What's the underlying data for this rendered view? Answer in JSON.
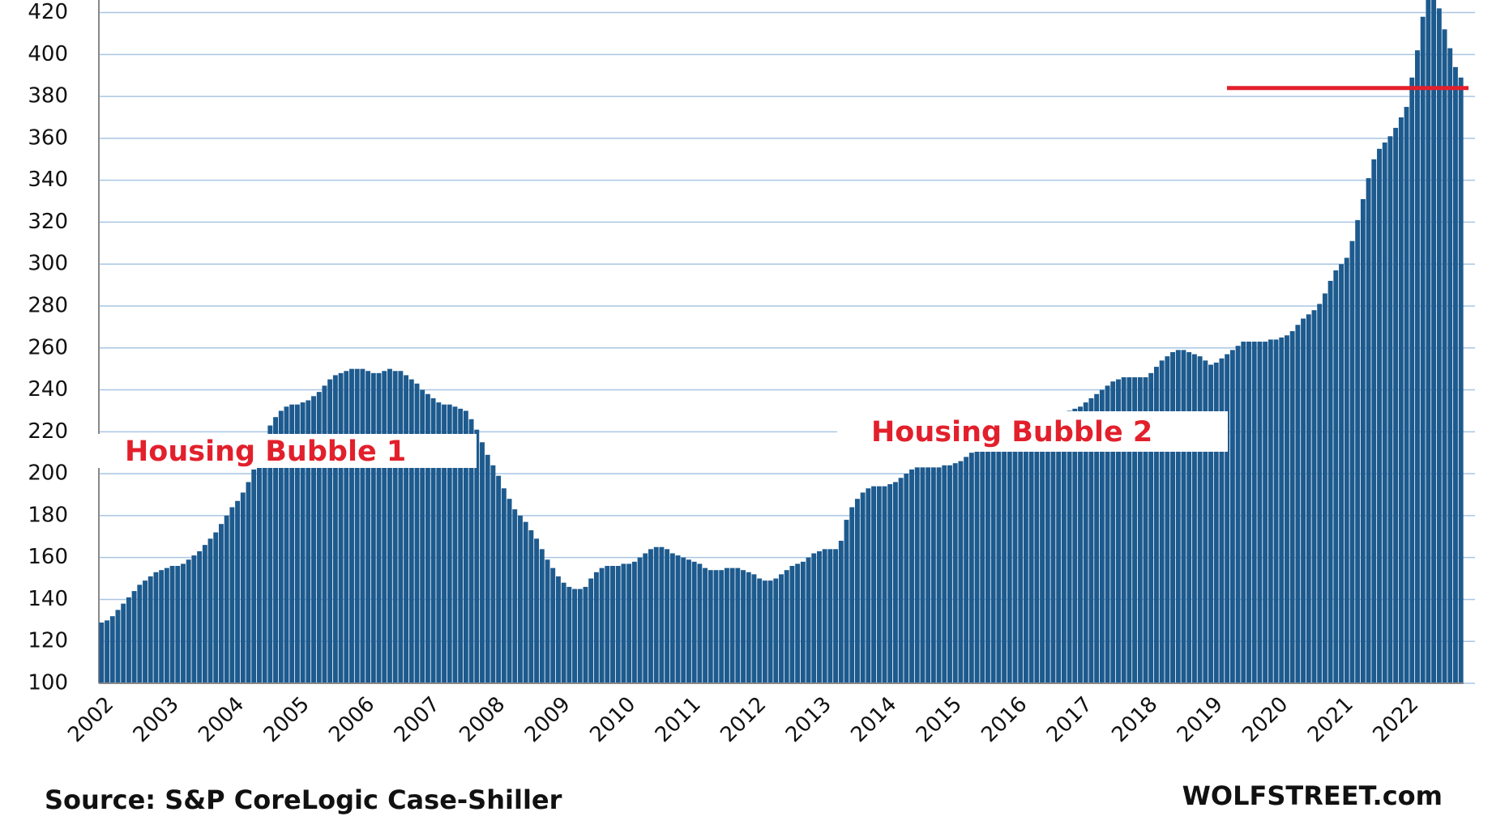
{
  "chart_data": {
    "type": "bar",
    "color": "#1d5a8e",
    "grid": true,
    "grid_color": "#a9c6e3",
    "ylim": [
      100,
      426
    ],
    "yticks": [
      100,
      120,
      140,
      160,
      180,
      200,
      220,
      240,
      260,
      280,
      300,
      320,
      340,
      360,
      380,
      400,
      420
    ],
    "reference_line": {
      "value": 384,
      "color": "#e2202c"
    },
    "annotations": [
      "Housing Bubble 1",
      "Housing Bubble 2"
    ],
    "annotation_color": "#e2202c",
    "source": "Source: S&P CoreLogic Case-Shiller",
    "credit": "WOLFSTREET.com",
    "categories": [
      "2002",
      null,
      null,
      null,
      null,
      null,
      null,
      null,
      null,
      null,
      null,
      null,
      "2003",
      null,
      null,
      null,
      null,
      null,
      null,
      null,
      null,
      null,
      null,
      null,
      "2004",
      null,
      null,
      null,
      null,
      null,
      null,
      null,
      null,
      null,
      null,
      null,
      "2005",
      null,
      null,
      null,
      null,
      null,
      null,
      null,
      null,
      null,
      null,
      null,
      "2006",
      null,
      null,
      null,
      null,
      null,
      null,
      null,
      null,
      null,
      null,
      null,
      "2007",
      null,
      null,
      null,
      null,
      null,
      null,
      null,
      null,
      null,
      null,
      null,
      "2008",
      null,
      null,
      null,
      null,
      null,
      null,
      null,
      null,
      null,
      null,
      null,
      "2009",
      null,
      null,
      null,
      null,
      null,
      null,
      null,
      null,
      null,
      null,
      null,
      "2010",
      null,
      null,
      null,
      null,
      null,
      null,
      null,
      null,
      null,
      null,
      null,
      "2011",
      null,
      null,
      null,
      null,
      null,
      null,
      null,
      null,
      null,
      null,
      null,
      "2012",
      null,
      null,
      null,
      null,
      null,
      null,
      null,
      null,
      null,
      null,
      null,
      "2013",
      null,
      null,
      null,
      null,
      null,
      null,
      null,
      null,
      null,
      null,
      null,
      "2014",
      null,
      null,
      null,
      null,
      null,
      null,
      null,
      null,
      null,
      null,
      null,
      "2015",
      null,
      null,
      null,
      null,
      null,
      null,
      null,
      null,
      null,
      null,
      null,
      "2016",
      null,
      null,
      null,
      null,
      null,
      null,
      null,
      null,
      null,
      null,
      null,
      "2017",
      null,
      null,
      null,
      null,
      null,
      null,
      null,
      null,
      null,
      null,
      null,
      "2018",
      null,
      null,
      null,
      null,
      null,
      null,
      null,
      null,
      null,
      null,
      null,
      "2019",
      null,
      null,
      null,
      null,
      null,
      null,
      null,
      null,
      null,
      null,
      null,
      "2020",
      null,
      null,
      null,
      null,
      null,
      null,
      null,
      null,
      null,
      null,
      null,
      "2021",
      null,
      null,
      null,
      null,
      null,
      null,
      null,
      null,
      null,
      null,
      null,
      "2022",
      null,
      null,
      null,
      null,
      null,
      null,
      null,
      null,
      null,
      null
    ],
    "values": [
      129,
      130,
      132,
      135,
      138,
      141,
      144,
      147,
      149,
      151,
      153,
      154,
      155,
      156,
      156,
      157,
      159,
      161,
      163,
      166,
      169,
      172,
      176,
      180,
      184,
      187,
      191,
      196,
      202,
      210,
      217,
      223,
      227,
      230,
      232,
      233,
      233,
      234,
      235,
      237,
      239,
      242,
      245,
      247,
      248,
      249,
      250,
      250,
      250,
      249,
      248,
      248,
      249,
      250,
      249,
      249,
      247,
      245,
      243,
      240,
      238,
      236,
      234,
      233,
      233,
      232,
      231,
      230,
      226,
      221,
      215,
      209,
      204,
      199,
      193,
      188,
      183,
      180,
      177,
      173,
      169,
      164,
      159,
      155,
      151,
      148,
      146,
      145,
      145,
      146,
      150,
      153,
      155,
      156,
      156,
      156,
      157,
      157,
      158,
      160,
      162,
      164,
      165,
      165,
      164,
      162,
      161,
      160,
      159,
      158,
      157,
      155,
      154,
      154,
      154,
      155,
      155,
      155,
      154,
      153,
      152,
      150,
      149,
      149,
      150,
      152,
      154,
      156,
      157,
      158,
      160,
      162,
      163,
      164,
      164,
      164,
      168,
      178,
      184,
      188,
      191,
      193,
      194,
      194,
      194,
      195,
      196,
      198,
      200,
      202,
      203,
      203,
      203,
      203,
      203,
      204,
      204,
      205,
      206,
      208,
      210,
      211,
      212,
      212,
      213,
      213,
      213,
      214,
      215,
      217,
      219,
      221,
      223,
      225,
      227,
      228,
      229,
      229,
      230,
      231,
      232,
      234,
      236,
      238,
      240,
      242,
      244,
      245,
      246,
      246,
      246,
      246,
      246,
      248,
      251,
      254,
      256,
      258,
      259,
      259,
      258,
      257,
      256,
      254,
      252,
      253,
      255,
      257,
      259,
      261,
      263,
      263,
      263,
      263,
      263,
      264,
      264,
      265,
      266,
      268,
      271,
      274,
      276,
      278,
      281,
      286,
      292,
      297,
      300,
      303,
      311,
      321,
      331,
      341,
      350,
      355,
      358,
      361,
      365,
      370,
      375,
      389,
      402,
      418,
      426,
      426,
      422,
      412,
      403,
      394,
      389
    ]
  }
}
